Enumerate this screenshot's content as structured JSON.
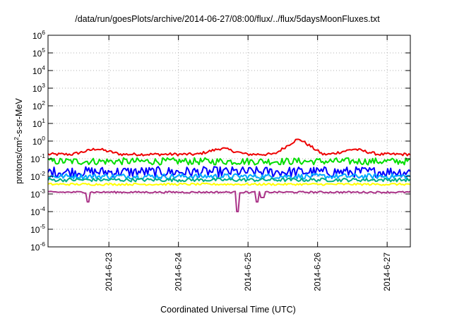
{
  "chart_data": {
    "type": "line",
    "title": "/data/run/goesPlots/archive/2014-06-27/08:00/flux/../flux/5daysMoonFluxes.txt",
    "xlabel": "Coordinated Universal Time (UTC)",
    "ylabel_parts": {
      "base": "protons/cm",
      "exp": "2",
      "rest": "-s-sr-MeV"
    },
    "y_scale": "log",
    "ylim": [
      -6,
      6
    ],
    "y_ticks": [
      {
        "base": "10",
        "exp": "6"
      },
      {
        "base": "10",
        "exp": "5"
      },
      {
        "base": "10",
        "exp": "4"
      },
      {
        "base": "10",
        "exp": "3"
      },
      {
        "base": "10",
        "exp": "2"
      },
      {
        "base": "10",
        "exp": "1"
      },
      {
        "base": "10",
        "exp": "0"
      },
      {
        "base": "10",
        "exp": "-1"
      },
      {
        "base": "10",
        "exp": "-2"
      },
      {
        "base": "10",
        "exp": "-3"
      },
      {
        "base": "10",
        "exp": "-4"
      },
      {
        "base": "10",
        "exp": "-5"
      },
      {
        "base": "10",
        "exp": "-6"
      }
    ],
    "xlim": [
      "2014-06-22T03:00",
      "2014-06-27T08:00"
    ],
    "x_ticks": [
      "2014-6-23",
      "2014-6-24",
      "2014-6-25",
      "2014-6-26",
      "2014-6-27"
    ],
    "grid": true,
    "series": [
      {
        "color": "#ee0000",
        "log10_flux_range": [
          -1.0,
          0.1
        ],
        "amp": 0.08,
        "base": -0.75,
        "peaks": [
          [
            0.7,
            0.32
          ],
          [
            2.5,
            0.35
          ],
          [
            3.6,
            0.9
          ],
          [
            4.4,
            0.3
          ]
        ]
      },
      {
        "color": "#00dd00",
        "log10_flux_range": [
          -1.4,
          -0.9
        ],
        "amp": 0.2,
        "base": -1.15,
        "peaks": []
      },
      {
        "color": "#0000ff",
        "log10_flux_range": [
          -2.5,
          -1.4
        ],
        "amp": 0.3,
        "base": -1.75,
        "peaks": []
      },
      {
        "color": "#00aaff",
        "log10_flux_range": [
          -2.3,
          -1.7
        ],
        "amp": 0.15,
        "base": -2.0,
        "peaks": []
      },
      {
        "color": "#00aa88",
        "log10_flux_range": [
          -2.4,
          -2.0
        ],
        "amp": 0.1,
        "base": -2.2,
        "peaks": []
      },
      {
        "color": "#ffff00",
        "log10_flux_range": [
          -2.6,
          -2.3
        ],
        "amp": 0.06,
        "base": -2.45,
        "peaks": []
      },
      {
        "color": "#aa3388",
        "log10_flux_range": [
          -3.0,
          -2.8
        ],
        "amp": 0.05,
        "base": -2.9,
        "peaks": [],
        "dips": [
          [
            0.57,
            -3.45
          ],
          [
            2.72,
            -4.0
          ],
          [
            3.0,
            -3.45
          ],
          [
            3.08,
            -3.2
          ]
        ]
      }
    ]
  }
}
